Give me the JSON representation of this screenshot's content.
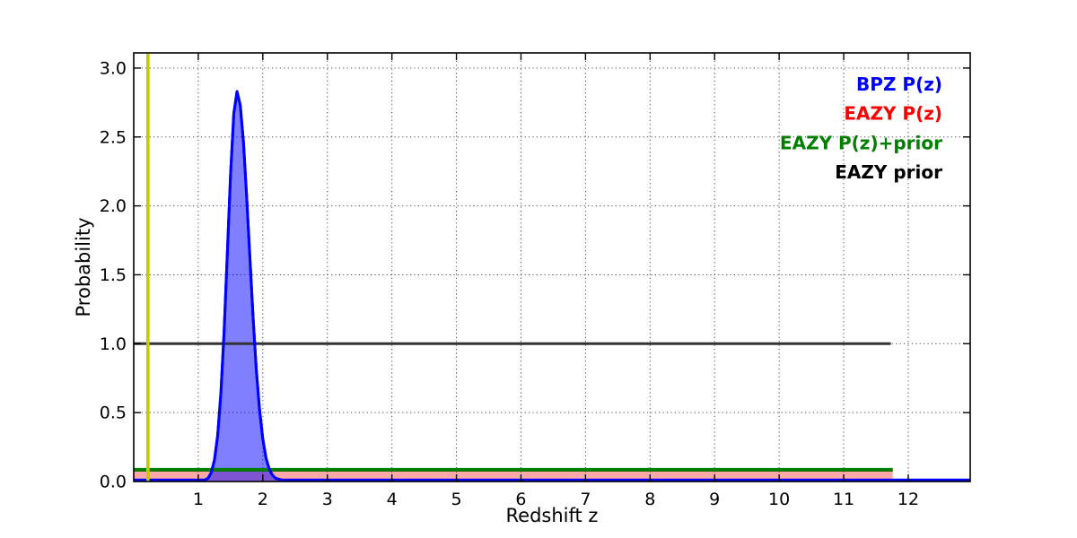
{
  "chart_data": {
    "type": "line",
    "title": "",
    "xlabel": "Redshift z",
    "ylabel": "Probability",
    "xlim": [
      0,
      12.96
    ],
    "ylim": [
      0,
      3.11
    ],
    "grid": true,
    "grid_style": "dotted",
    "xticks": [
      "1",
      "2",
      "3",
      "4",
      "5",
      "6",
      "7",
      "8",
      "9",
      "10",
      "11",
      "12"
    ],
    "yticks": [
      "0.0",
      "0.5",
      "1.0",
      "1.5",
      "2.0",
      "2.5",
      "3.0"
    ],
    "legend_position": "upper-right",
    "legend": [
      {
        "label": "BPZ P(z)",
        "color": "#0000ff"
      },
      {
        "label": "EAZY P(z)",
        "color": "#ff0000"
      },
      {
        "label": "EAZY P(z)+prior",
        "color": "#007f00"
      },
      {
        "label": "EAZY prior",
        "color": "#000000"
      }
    ],
    "series": [
      {
        "id": "eazy-pz",
        "label": "EAZY P(z)",
        "type": "flat-filled",
        "color": "#ff0000",
        "fill_alpha": 0.34,
        "line_width": 2.5,
        "value": 0.08,
        "x_start": 0,
        "x_end": 11.76
      },
      {
        "id": "bpz-pz",
        "label": "BPZ P(z)",
        "type": "curve-filled",
        "color": "#0000ff",
        "fill_alpha": 0.5,
        "line_width": 3,
        "peak_z": 1.6,
        "peak_p": 2.83,
        "points": [
          [
            0,
            0
          ],
          [
            0.9,
            0
          ],
          [
            1.0,
            0.002
          ],
          [
            1.1,
            0.007
          ],
          [
            1.15,
            0.023
          ],
          [
            1.2,
            0.063
          ],
          [
            1.25,
            0.154
          ],
          [
            1.3,
            0.333
          ],
          [
            1.35,
            0.64
          ],
          [
            1.4,
            1.09
          ],
          [
            1.45,
            1.66
          ],
          [
            1.5,
            2.23
          ],
          [
            1.55,
            2.67
          ],
          [
            1.6,
            2.83
          ],
          [
            1.65,
            2.73
          ],
          [
            1.7,
            2.46
          ],
          [
            1.75,
            2.07
          ],
          [
            1.8,
            1.63
          ],
          [
            1.85,
            1.19
          ],
          [
            1.9,
            0.81
          ],
          [
            1.95,
            0.52
          ],
          [
            2.0,
            0.31
          ],
          [
            2.05,
            0.17
          ],
          [
            2.1,
            0.089
          ],
          [
            2.15,
            0.046
          ],
          [
            2.2,
            0.023
          ],
          [
            2.3,
            0.006
          ],
          [
            2.4,
            0.002
          ],
          [
            2.5,
            0.001
          ],
          [
            2.6,
            0
          ],
          [
            12.96,
            0
          ]
        ]
      },
      {
        "id": "eazy-prior",
        "label": "EAZY prior",
        "type": "flat",
        "color": "#333333",
        "line_width": 3,
        "value": 1.0,
        "x_start": 0,
        "x_end": 11.73
      },
      {
        "id": "eazy-pz-prior",
        "label": "EAZY P(z)+prior",
        "type": "flat",
        "color": "#007f00",
        "line_width": 4,
        "value": 0.085,
        "x_start": 0,
        "x_end": 11.76
      },
      {
        "id": "spec-z-marker",
        "label": "",
        "type": "vline",
        "color": "#c9c900",
        "line_width": 3.5,
        "x": 0.22
      }
    ]
  }
}
